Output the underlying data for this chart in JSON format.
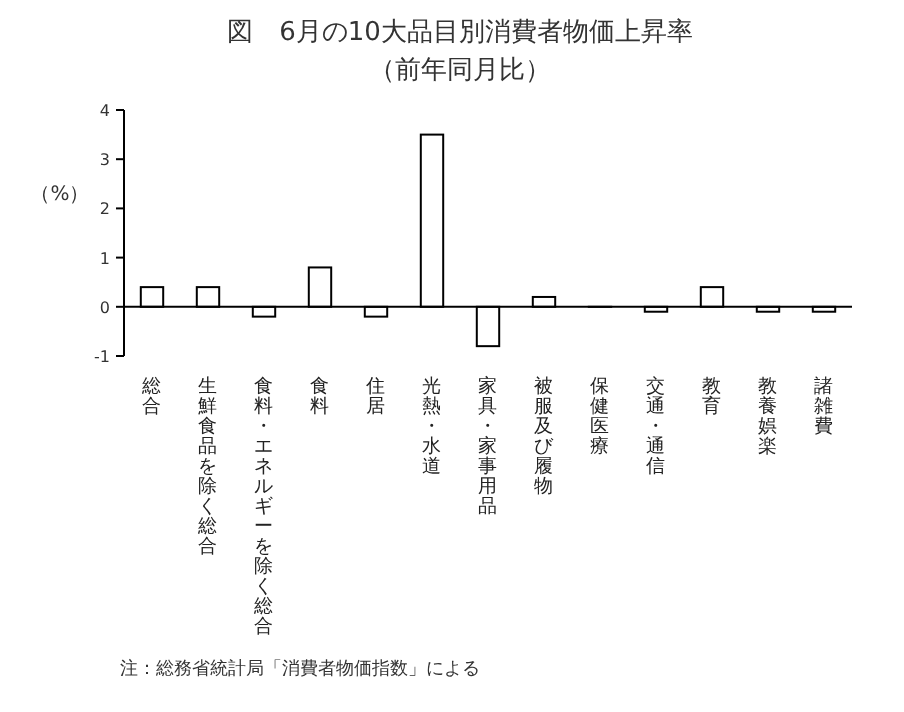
{
  "chart_data": {
    "type": "bar",
    "title": "図　6月の10大品目別消費者物価上昇率",
    "subtitle": "（前年同月比）",
    "ylabel": "（%）",
    "categories": [
      "総合",
      "生鮮食品を除く総合",
      "食料・エネルギーを除く総合",
      "食料",
      "住居",
      "光熱・水道",
      "家具・家事用品",
      "被服及び履物",
      "保健医療",
      "交通・通信",
      "教育",
      "教養娯楽",
      "諸雑費"
    ],
    "values": [
      0.4,
      0.4,
      -0.2,
      0.8,
      -0.2,
      3.5,
      -0.8,
      0.2,
      0.0,
      -0.1,
      0.4,
      -0.1,
      -0.1
    ],
    "color": "#ffffff",
    "ylim": [
      -1,
      4
    ],
    "yticks": [
      -1,
      0,
      1,
      2,
      3,
      4
    ],
    "annotations": [
      "注：総務省統計局「消費者物価指数」による"
    ]
  }
}
